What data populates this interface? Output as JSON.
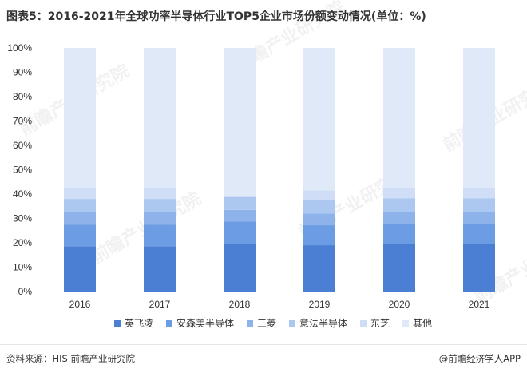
{
  "title": "图表5：2016-2021年全球功率半导体行业TOP5企业市场份额变动情况(单位：%)",
  "footer": {
    "source": "资料来源：HIS 前瞻产业研究院",
    "brand": "@前瞻经济学人APP"
  },
  "watermark_text": "前瞻产业研究院",
  "chart_data": {
    "type": "bar",
    "stacked": true,
    "percent": true,
    "categories": [
      "2016",
      "2017",
      "2018",
      "2019",
      "2020",
      "2021"
    ],
    "ylim": [
      0,
      100
    ],
    "yticks": [
      "0%",
      "10%",
      "20%",
      "30%",
      "40%",
      "50%",
      "60%",
      "70%",
      "80%",
      "90%",
      "100%"
    ],
    "legend_position": "bottom",
    "series": [
      {
        "name": "英飞凌",
        "color": "#4a7fd4",
        "values": [
          18.5,
          18.5,
          19.8,
          19.0,
          19.8,
          19.8
        ]
      },
      {
        "name": "安森美半导体",
        "color": "#6c9ce3",
        "values": [
          9.0,
          9.0,
          8.9,
          8.2,
          8.2,
          8.2
        ]
      },
      {
        "name": "三菱",
        "color": "#8db3ea",
        "values": [
          5.0,
          5.0,
          4.8,
          4.8,
          4.9,
          4.9
        ]
      },
      {
        "name": "意法半导体",
        "color": "#adc8f0",
        "values": [
          5.5,
          5.5,
          5.3,
          5.5,
          5.3,
          5.3
        ]
      },
      {
        "name": "东芝",
        "color": "#cfdef6",
        "values": [
          4.5,
          4.5,
          0.6,
          4.0,
          4.5,
          4.5
        ]
      },
      {
        "name": "其他",
        "color": "#dfe9f7",
        "values": [
          57.5,
          57.5,
          60.6,
          58.5,
          57.3,
          57.3
        ]
      }
    ]
  }
}
